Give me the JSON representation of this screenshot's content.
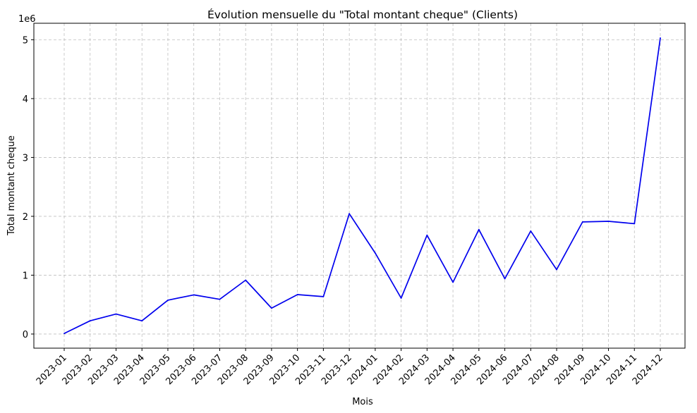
{
  "chart_data": {
    "type": "line",
    "title": "Évolution mensuelle du \"Total montant cheque\" (Clients)",
    "xlabel": "Mois",
    "ylabel": "Total montant cheque",
    "y_scale_label": "1e6",
    "categories": [
      "2023-01",
      "2023-02",
      "2023-03",
      "2023-04",
      "2023-05",
      "2023-06",
      "2023-07",
      "2023-08",
      "2023-09",
      "2023-10",
      "2023-11",
      "2023-12",
      "2024-01",
      "2024-02",
      "2024-03",
      "2024-04",
      "2024-05",
      "2024-06",
      "2024-07",
      "2024-08",
      "2024-09",
      "2024-10",
      "2024-11",
      "2024-12"
    ],
    "series": [
      {
        "values": [
          10000,
          225000,
          340000,
          225000,
          575000,
          665000,
          590000,
          915000,
          440000,
          670000,
          635000,
          2045000,
          1375000,
          610000,
          1680000,
          880000,
          1775000,
          940000,
          1750000,
          1095000,
          1905000,
          1915000,
          1875000,
          5030000
        ],
        "color": "#0000ee"
      }
    ],
    "yticks": [
      0,
      1000000,
      2000000,
      3000000,
      4000000,
      5000000
    ],
    "ytick_labels": [
      "0",
      "1",
      "2",
      "3",
      "4",
      "5"
    ],
    "ylim": [
      -240000,
      5280000
    ],
    "grid": true,
    "grid_style": "dashed"
  }
}
